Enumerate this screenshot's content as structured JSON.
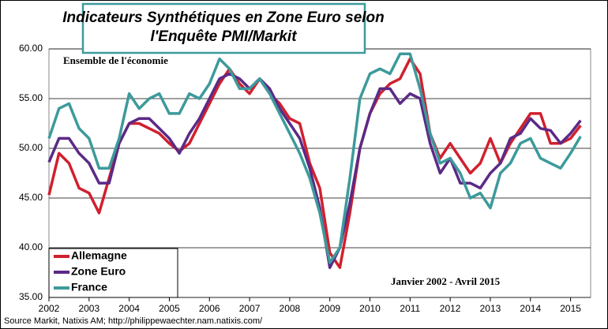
{
  "chart_data": {
    "type": "line",
    "title": [
      "Indicateurs Synthétiques en Zone Euro selon",
      "l'Enquête PMI/Markit"
    ],
    "annotations": [
      "Ensemble de l'économie",
      "Janvier 2002 - Avril 2015"
    ],
    "source": "Source Markit, Natixis AM;  http://philippewaechter.nam.natixis.com/",
    "x": [
      2002,
      2002.25,
      2002.5,
      2002.75,
      2003,
      2003.25,
      2003.5,
      2003.75,
      2004,
      2004.25,
      2004.5,
      2004.75,
      2005,
      2005.25,
      2005.5,
      2005.75,
      2006,
      2006.25,
      2006.5,
      2006.75,
      2007,
      2007.25,
      2007.5,
      2007.75,
      2008,
      2008.25,
      2008.5,
      2008.75,
      2009,
      2009.25,
      2009.5,
      2009.75,
      2010,
      2010.25,
      2010.5,
      2010.75,
      2011,
      2011.25,
      2011.5,
      2011.75,
      2012,
      2012.25,
      2012.5,
      2012.75,
      2013,
      2013.25,
      2013.5,
      2013.75,
      2014,
      2014.25,
      2014.5,
      2014.75,
      2015,
      2015.25
    ],
    "series": [
      {
        "name": "Allemagne",
        "color": "#d0202e",
        "values": [
          45.3,
          49.5,
          48.5,
          46,
          45.5,
          43.5,
          47,
          50.5,
          52.5,
          52.5,
          52,
          51.5,
          50.5,
          49.7,
          50.5,
          52.5,
          54.5,
          56.5,
          58,
          56.5,
          55.5,
          57,
          55.5,
          54.5,
          53,
          52.5,
          48.5,
          46,
          39.5,
          38,
          43.5,
          50,
          53.5,
          55.5,
          56.5,
          57,
          59,
          57.5,
          51.5,
          49,
          50.5,
          49,
          47.5,
          48.5,
          51,
          48.5,
          50.5,
          52,
          53.5,
          53.5,
          50.5,
          50.5,
          51,
          52.3
        ]
      },
      {
        "name": "Zone Euro",
        "color": "#5b2a86",
        "values": [
          48.6,
          51,
          51,
          49.5,
          48.5,
          46.5,
          46.5,
          50.5,
          52.5,
          53,
          53,
          52,
          51,
          49.5,
          51.5,
          53,
          55,
          57,
          57.5,
          57,
          56,
          57,
          56,
          54,
          52.5,
          51,
          48,
          44,
          38,
          40,
          44.5,
          50,
          53.5,
          56,
          56,
          54.5,
          55.5,
          55,
          50.5,
          47.5,
          49,
          46.5,
          46.5,
          46,
          47.5,
          48.5,
          51,
          51.5,
          53,
          52,
          51.8,
          50.5,
          51.5,
          52.8
        ]
      },
      {
        "name": "France",
        "color": "#3d9a9b",
        "values": [
          51,
          54,
          54.5,
          52,
          51,
          48,
          48,
          51,
          55.5,
          54,
          55,
          55.5,
          53.5,
          53.5,
          55.5,
          55,
          56.5,
          59,
          58,
          56,
          56,
          57,
          55.5,
          53.5,
          51.5,
          49.5,
          47,
          43.5,
          38.5,
          40,
          47,
          55,
          57.5,
          58,
          57.5,
          59.5,
          59.5,
          56,
          51.5,
          48.5,
          49,
          47.5,
          45,
          45.5,
          44,
          47.5,
          48.5,
          50.5,
          51,
          49,
          48.5,
          48,
          49.5,
          51.2
        ]
      }
    ],
    "xlim": [
      2002,
      2015.5
    ],
    "xticks": [
      2002,
      2003,
      2004,
      2005,
      2006,
      2007,
      2008,
      2009,
      2010,
      2011,
      2012,
      2013,
      2014,
      2015
    ],
    "ylim": [
      35,
      60
    ],
    "yticks": [
      {
        "value": 35,
        "label": "35.00"
      },
      {
        "value": 40,
        "label": "40.00"
      },
      {
        "value": 45,
        "label": "45.00"
      },
      {
        "value": 50,
        "label": "50.00"
      },
      {
        "value": 55,
        "label": "55.00"
      },
      {
        "value": 60,
        "label": "60.00"
      }
    ],
    "grid": true,
    "legend": "lower-left"
  }
}
